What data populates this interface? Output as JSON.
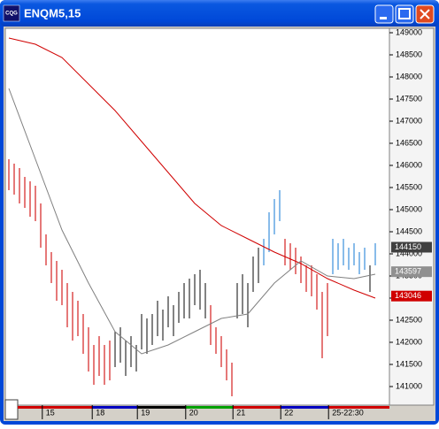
{
  "window": {
    "title": "ENQM5,15",
    "icon_text": "CQG"
  },
  "chart_data": {
    "type": "ohlc",
    "high": [
      146140,
      146040,
      145940,
      145740,
      145640,
      145540,
      145140,
      144440,
      144040,
      143840,
      143640,
      143340,
      143140,
      142940,
      142640,
      142340,
      141940,
      142140,
      141940,
      142040,
      142240,
      142340,
      142040,
      142140,
      141940,
      142640,
      142540,
      142640,
      142940,
      142740,
      143040,
      142840,
      143140,
      143340,
      143440,
      143540,
      143640,
      143340,
      142840,
      142340,
      142140,
      141840,
      141540,
      143340,
      143540,
      143340,
      143940,
      144140,
      144340,
      144940,
      145240,
      145440,
      144340,
      144240,
      144140,
      143940,
      143740,
      143740,
      143540,
      143140,
      143340,
      144340,
      144240,
      144340,
      144140,
      144240,
      144040,
      144140,
      143740,
      144240
    ],
    "low": [
      145440,
      145340,
      145140,
      145040,
      144840,
      144740,
      144140,
      143740,
      143340,
      142940,
      142840,
      142340,
      142040,
      142140,
      141740,
      141340,
      141040,
      141240,
      141040,
      141140,
      141440,
      141540,
      141240,
      141440,
      141340,
      141840,
      141740,
      141940,
      142140,
      142040,
      142340,
      142140,
      142440,
      142540,
      142540,
      142840,
      142740,
      142540,
      141940,
      141740,
      141440,
      141140,
      140780,
      142540,
      142640,
      142340,
      143140,
      143340,
      143740,
      144040,
      144440,
      144740,
      143740,
      143640,
      143540,
      143340,
      143140,
      143040,
      142740,
      141640,
      142140,
      143540,
      143640,
      143740,
      143640,
      143740,
      143540,
      143640,
      143140,
      143740
    ],
    "bar_colors": [
      "#d42020",
      "#d42020",
      "#d42020",
      "#d42020",
      "#d42020",
      "#d42020",
      "#d42020",
      "#d42020",
      "#d42020",
      "#d42020",
      "#d42020",
      "#d42020",
      "#d42020",
      "#d42020",
      "#d42020",
      "#d42020",
      "#d42020",
      "#d42020",
      "#d42020",
      "#d42020",
      "#303030",
      "#303030",
      "#303030",
      "#303030",
      "#303030",
      "#303030",
      "#303030",
      "#303030",
      "#303030",
      "#303030",
      "#303030",
      "#303030",
      "#303030",
      "#303030",
      "#303030",
      "#303030",
      "#303030",
      "#303030",
      "#d42020",
      "#d42020",
      "#d42020",
      "#d42020",
      "#d42020",
      "#303030",
      "#303030",
      "#303030",
      "#303030",
      "#303030",
      "#3a8fdc",
      "#3a8fdc",
      "#3a8fdc",
      "#3a8fdc",
      "#d42020",
      "#d42020",
      "#d42020",
      "#d42020",
      "#d42020",
      "#d42020",
      "#d42020",
      "#d42020",
      "#d42020",
      "#3a8fdc",
      "#3a8fdc",
      "#3a8fdc",
      "#3a8fdc",
      "#3a8fdc",
      "#3a8fdc",
      "#3a8fdc",
      "#303030",
      "#3a8fdc"
    ],
    "line_x": [
      0,
      5,
      10,
      15,
      20,
      25,
      30,
      35,
      40,
      45,
      50,
      55,
      60,
      65,
      69
    ],
    "lines": [
      {
        "color": "#d00000",
        "values": [
          148880,
          148740,
          148440,
          147840,
          147240,
          146540,
          145840,
          145140,
          144640,
          144340,
          144040,
          143780,
          143440,
          143180,
          143000
        ]
      },
      {
        "color": "#808080",
        "values": [
          147740,
          146140,
          144540,
          143340,
          142240,
          141740,
          141940,
          142240,
          142540,
          142640,
          143340,
          143840,
          143500,
          143440,
          143540
        ]
      }
    ],
    "xlim": [
      -0.667,
      71.333
    ],
    "xticks": [
      {
        "value": 6.3,
        "label": "15"
      },
      {
        "value": 15.7,
        "label": "18"
      },
      {
        "value": 24.2,
        "label": "19"
      },
      {
        "value": 33.3,
        "label": "20"
      },
      {
        "value": 42.2,
        "label": "21"
      },
      {
        "value": 51.2,
        "label": "22"
      },
      {
        "value": 60.2,
        "label": "25-22:30"
      }
    ],
    "strip_colors": [
      "#d00000",
      "#d00000",
      "#0000c0",
      "#000000",
      "#00a000",
      "#d00000",
      "#0000c0",
      "#d00000"
    ],
    "ylim": [
      140580,
      149100
    ],
    "yticks": [
      149000,
      148500,
      148000,
      147500,
      147000,
      146500,
      146000,
      145500,
      145000,
      144500,
      144000,
      143500,
      143000,
      142500,
      142000,
      141500,
      141000
    ],
    "price_labels": [
      {
        "value": 144150,
        "bg": "#404040"
      },
      {
        "value": 143597,
        "bg": "#909090"
      },
      {
        "value": 143046,
        "bg": "#d00000"
      }
    ]
  }
}
